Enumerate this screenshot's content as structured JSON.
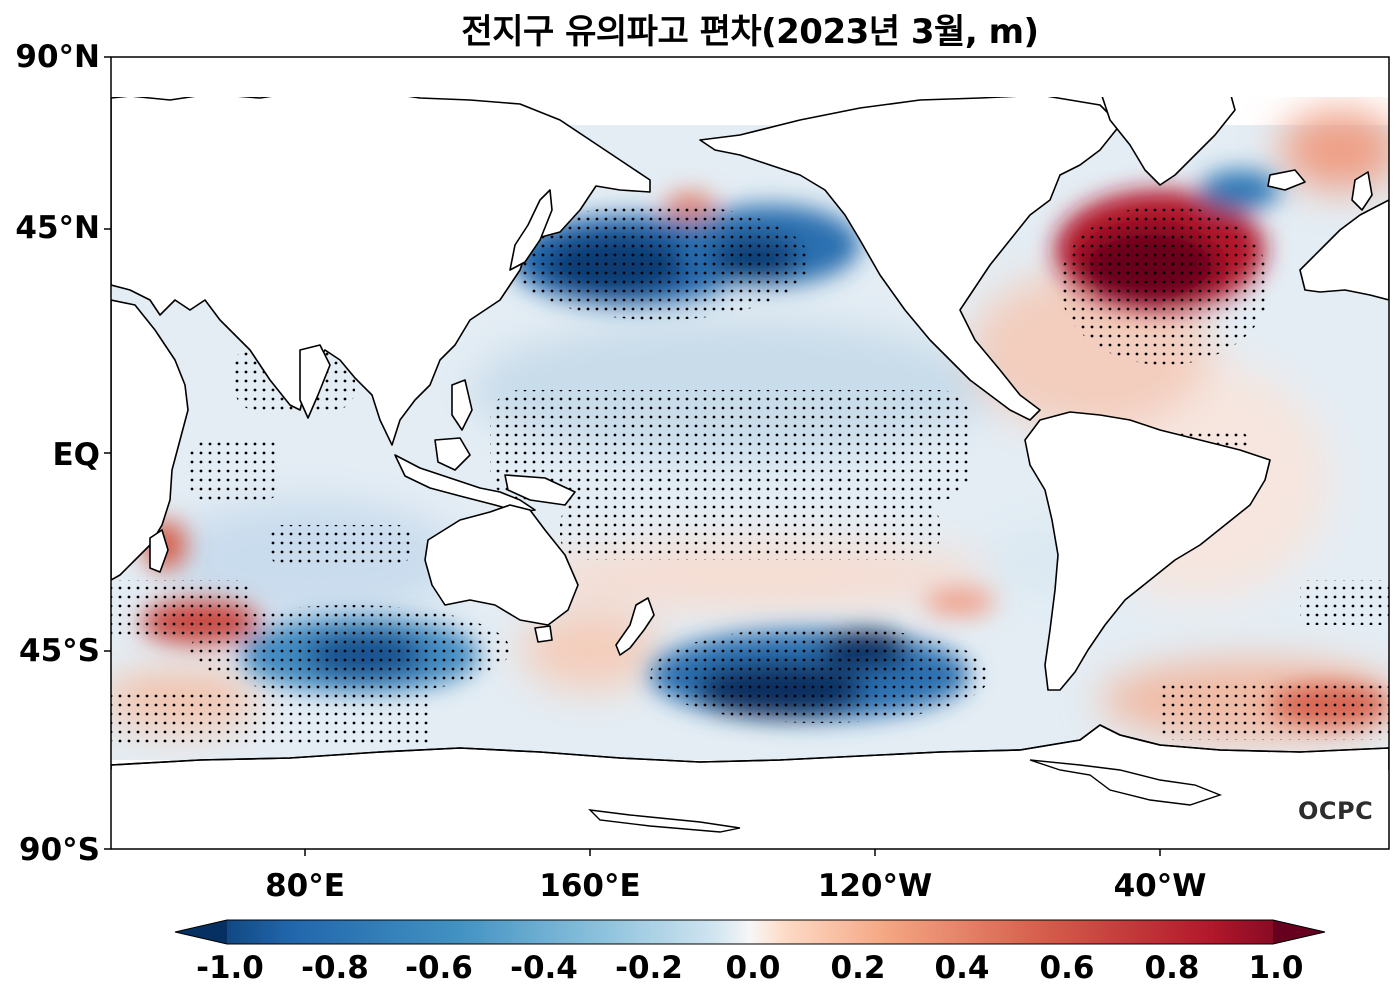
{
  "title": "전지구 유의파고 편차(2023년 3월, m)",
  "logo": "OCPC",
  "lat_labels": [
    "90°N",
    "45°N",
    "EQ",
    "45°S",
    "90°S"
  ],
  "lon_labels": [
    "80°E",
    "160°E",
    "120°W",
    "40°W"
  ],
  "colorbar": {
    "min": -1.0,
    "max": 1.0,
    "colormap": "RdBu_r",
    "tick_labels": [
      "-1.0",
      "-0.8",
      "-0.6",
      "-0.4",
      "-0.2",
      "0.0",
      "0.2",
      "0.4",
      "0.6",
      "0.8",
      "1.0"
    ]
  },
  "colors": {
    "strong_negative": "#053061",
    "negative": "#4393c3",
    "weak_negative": "#d1e5f0",
    "neutral": "#f7f7f7",
    "weak_positive": "#fddbc7",
    "positive": "#d6604d",
    "strong_positive": "#67001f"
  }
}
